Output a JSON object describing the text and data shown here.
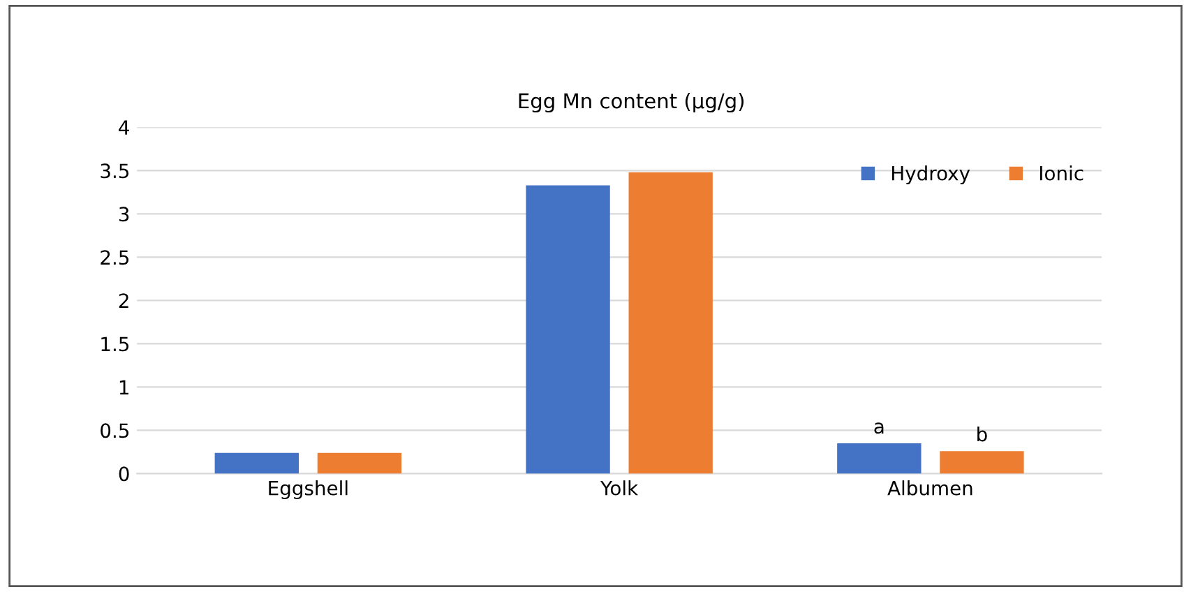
{
  "chart_data": {
    "type": "bar",
    "title": "Egg Mn content (µg/g)",
    "categories": [
      "Eggshell",
      "Yolk",
      "Albumen"
    ],
    "series": [
      {
        "name": "Hydroxy",
        "color": "#4472c4",
        "values": [
          0.24,
          3.33,
          0.35
        ]
      },
      {
        "name": "Ionic",
        "color": "#ed7d31",
        "values": [
          0.24,
          3.48,
          0.26
        ]
      }
    ],
    "ylim": [
      0,
      4
    ],
    "yticks": [
      0,
      {
        "value": 0.5,
        "label": "0.5"
      },
      1,
      {
        "value": 1.5,
        "label": "1.5"
      },
      2,
      {
        "value": 2.5,
        "label": "2.5"
      },
      3,
      {
        "value": 3.5,
        "label": "3.5"
      },
      4
    ],
    "grid": "y",
    "legend": "top right",
    "annotations": [
      "a",
      "b"
    ]
  }
}
